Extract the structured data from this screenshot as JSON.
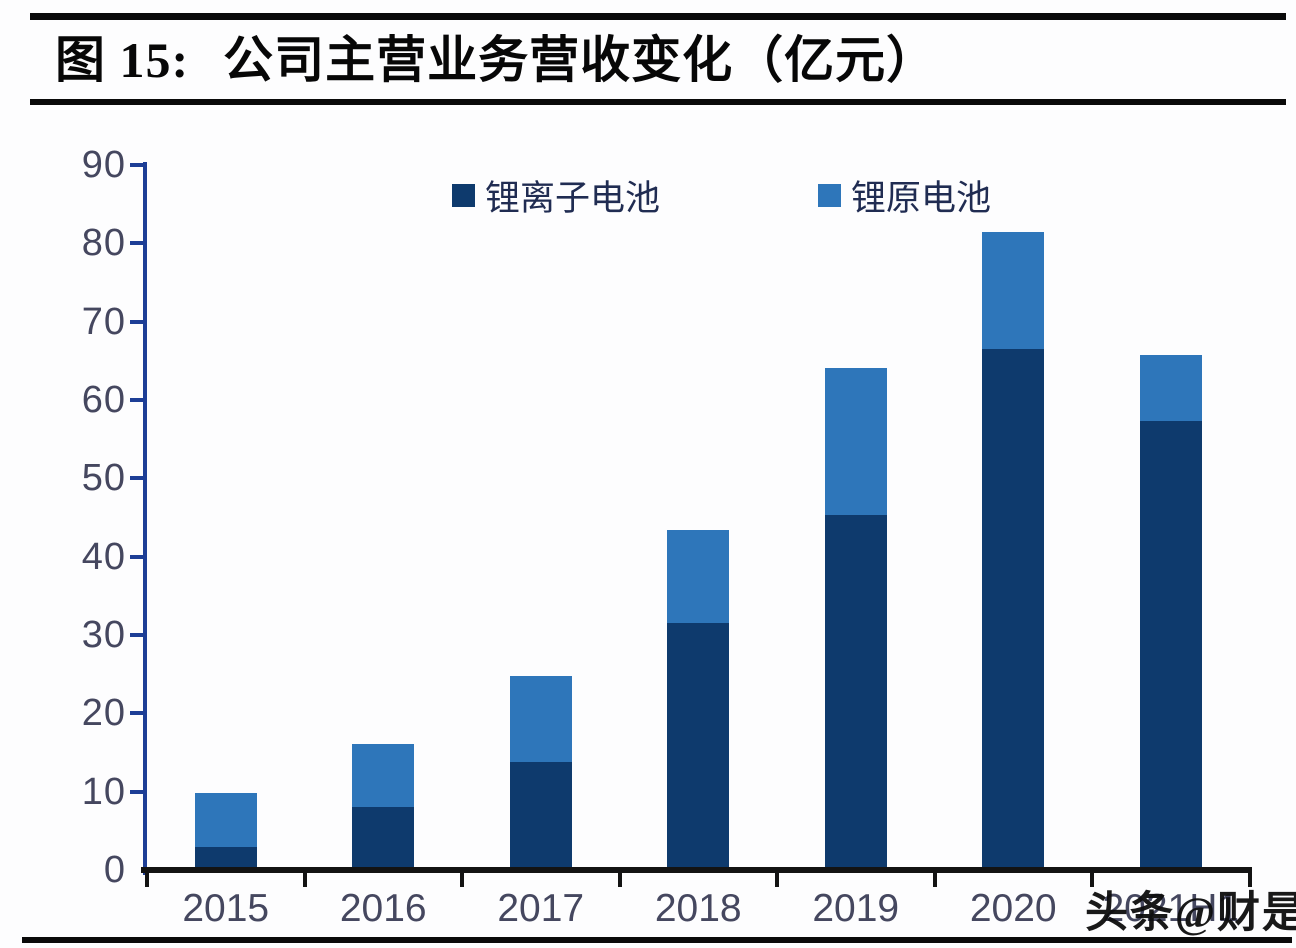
{
  "title": {
    "prefix": "图 15:",
    "text": "公司主营业务营收变化（亿元）"
  },
  "watermark": "头条@财是",
  "colors": {
    "series_dark": "#0e3a6d",
    "series_light": "#2e76ba",
    "y_axis": "#1d3e96",
    "x_axis": "#131313",
    "tick_label": "#45475f",
    "legend_text": "#202c52",
    "rule": "#0a0a0a"
  },
  "chart_data": {
    "type": "bar",
    "stacked": true,
    "title": "图 15: 公司主营业务营收变化（亿元）",
    "xlabel": "",
    "ylabel": "",
    "categories": [
      "2015",
      "2016",
      "2017",
      "2018",
      "2019",
      "2020",
      "2021H1"
    ],
    "series": [
      {
        "name": "锂离子电池",
        "color_key": "series_dark",
        "values": [
          2.9,
          8.1,
          13.8,
          31.5,
          45.3,
          66.5,
          57.3
        ]
      },
      {
        "name": "锂原电池",
        "color_key": "series_light",
        "values": [
          6.9,
          8.0,
          11.0,
          11.9,
          18.8,
          15.0,
          8.4
        ]
      }
    ],
    "totals": [
      9.8,
      16.1,
      24.8,
      43.4,
      64.1,
      81.5,
      65.7
    ],
    "ylim": [
      0,
      90
    ],
    "yticks": [
      0,
      10,
      20,
      30,
      40,
      50,
      60,
      70,
      80,
      90
    ],
    "grid": false,
    "legend_position": "top-center"
  }
}
